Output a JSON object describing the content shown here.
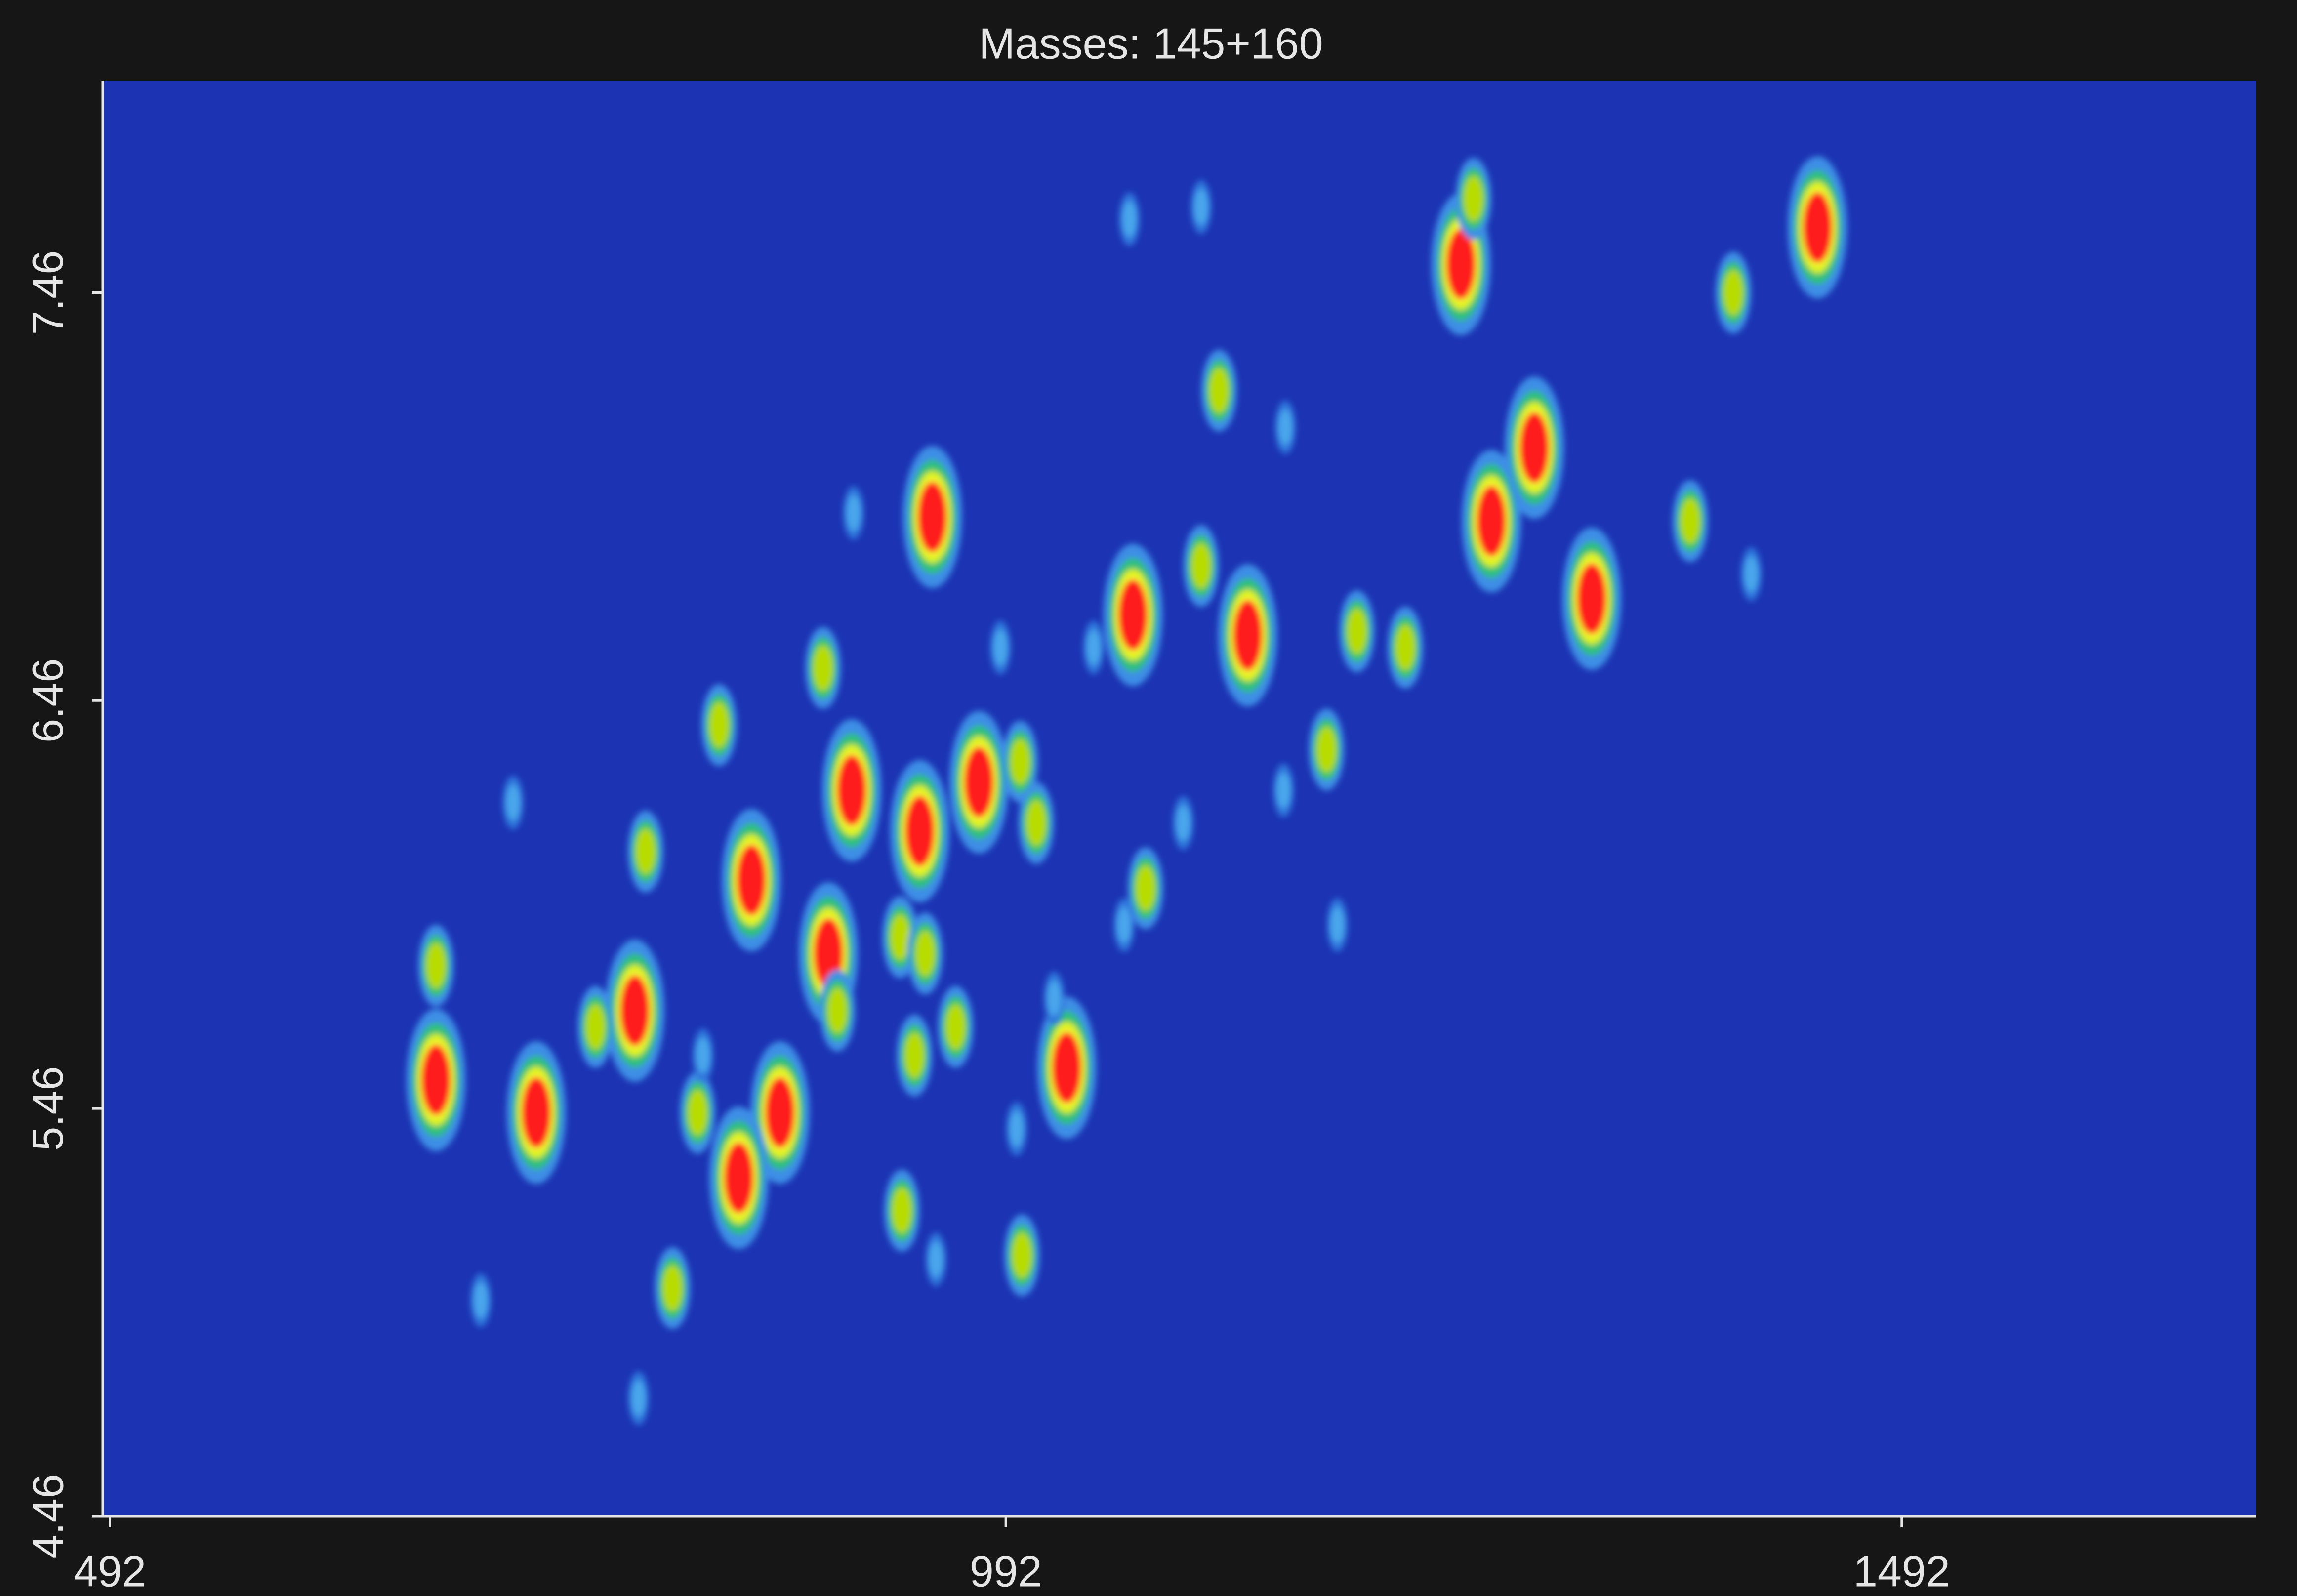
{
  "chart_data": {
    "type": "scatter",
    "title": "Masses:  145+160",
    "xlim": [
      488,
      1690
    ],
    "ylim": [
      4.46,
      7.98
    ],
    "xticks": [
      492,
      992,
      1492
    ],
    "yticks": [
      4.46,
      5.46,
      6.46,
      7.46
    ],
    "background": "#1c34b4",
    "series": [
      {
        "color": "#ff1a1a",
        "x": [
          1445,
          1246,
          1263,
          1287,
          1319,
          1063,
          1127,
          951,
          906,
          944,
          977,
          850,
          893,
          785,
          674,
          730,
          866,
          843,
          1026
        ],
        "y": [
          7.62,
          7.53,
          6.9,
          7.08,
          6.71,
          6.67,
          6.62,
          6.91,
          6.24,
          6.14,
          6.26,
          6.02,
          5.84,
          5.7,
          5.53,
          5.45,
          5.45,
          5.29,
          5.56
        ]
      },
      {
        "color": "#b8dc00",
        "x": [
          1398,
          1374,
          1253,
          1215,
          1188,
          1111,
          890,
          832,
          791,
          763,
          674,
          806,
          898,
          933,
          947,
          964,
          1000,
          1009,
          1070,
          1101,
          1171,
          820,
          934,
          1001,
          941
        ],
        "y": [
          7.46,
          6.9,
          7.69,
          6.59,
          6.63,
          7.22,
          6.54,
          6.4,
          6.09,
          5.66,
          5.81,
          5.02,
          5.7,
          5.88,
          5.84,
          5.66,
          6.31,
          6.16,
          6.0,
          6.79,
          6.34,
          5.45,
          5.21,
          5.1,
          5.59
        ]
      },
      {
        "color": "#4aa6ec",
        "x": [
          717,
          787,
          699,
          1147,
          1177,
          1061,
          1101,
          1148,
          1019,
          998,
          1058,
          1091,
          1041,
          989,
          907,
          1408,
          823,
          953
        ],
        "y": [
          6.21,
          4.75,
          4.99,
          6.24,
          5.91,
          7.64,
          7.67,
          7.13,
          5.73,
          5.41,
          5.91,
          6.16,
          6.59,
          6.59,
          6.92,
          6.77,
          5.59,
          5.09
        ]
      }
    ]
  }
}
